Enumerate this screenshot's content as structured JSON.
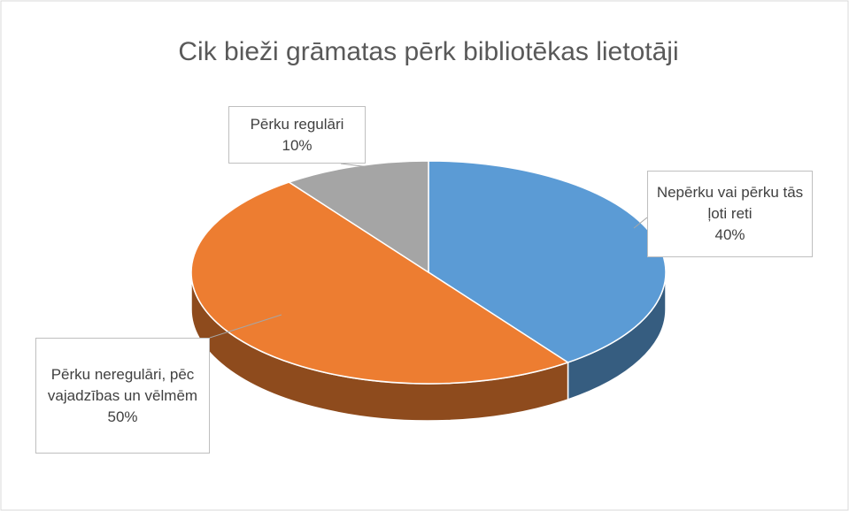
{
  "chart_data": {
    "type": "pie",
    "title": "Cik bieži grāmatas pērk bibliotēkas lietotāji",
    "categories": [
      "Nepērku vai pērku tās ļoti reti",
      "Pērku neregulāri, pēc vajadzības un vēlmēm",
      "Pērku regulāri"
    ],
    "values": [
      40,
      50,
      10
    ],
    "value_labels": [
      "40%",
      "50%",
      "10%"
    ],
    "colors": [
      "#5b9bd5",
      "#ed7d31",
      "#a5a5a5"
    ]
  }
}
